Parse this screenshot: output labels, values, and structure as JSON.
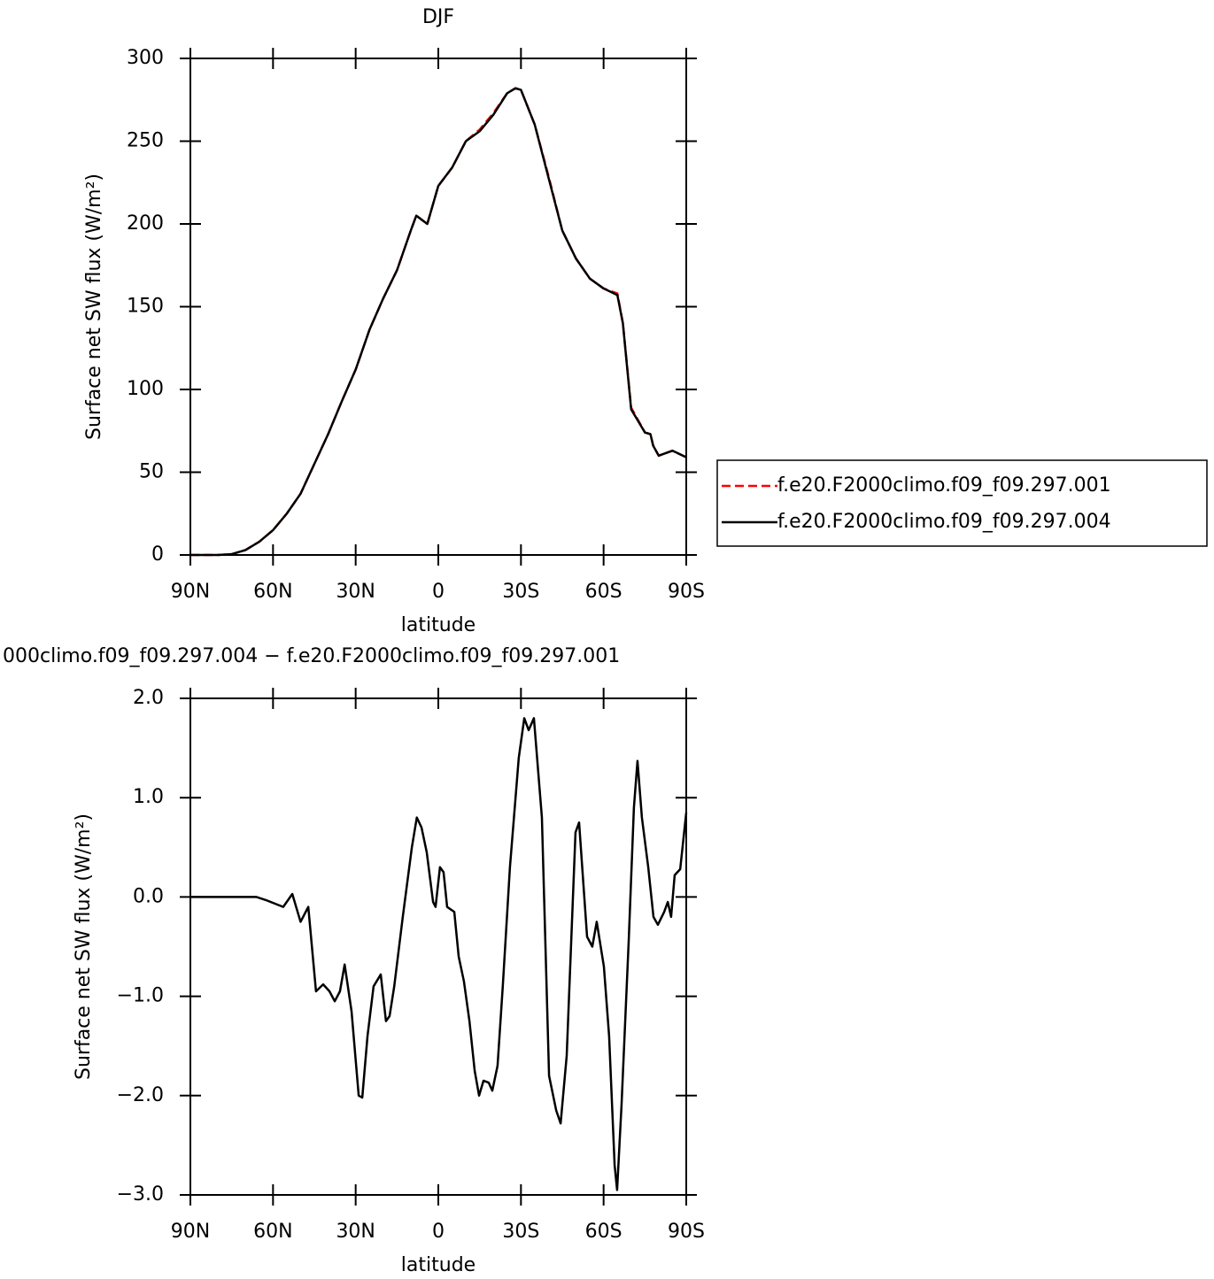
{
  "chart_data": [
    {
      "type": "line",
      "title": "DJF",
      "xlabel": "latitude",
      "ylabel": "Surface net SW flux (W/m²)",
      "x": [
        90,
        85,
        80,
        75,
        70,
        65,
        60,
        55,
        50,
        45,
        40,
        35,
        30,
        25,
        20,
        15,
        10,
        8,
        4,
        0,
        -5,
        -10,
        -15,
        -20,
        -25,
        -28,
        -30,
        -35,
        -40,
        -45,
        -50,
        -55,
        -60,
        -65,
        -67,
        -70,
        -75,
        -77,
        -78,
        -80,
        -85,
        -90
      ],
      "series": [
        {
          "name": "f.e20.F2000climo.f09_f09.297.001",
          "color": "#ff0000",
          "dashed": true,
          "values": [
            0,
            0,
            0,
            0.5,
            3,
            8,
            15,
            25,
            37,
            55,
            73,
            93,
            112,
            136,
            155,
            172,
            196,
            205,
            200,
            223,
            234,
            250,
            257,
            267,
            279,
            282,
            281,
            260,
            229,
            196,
            179,
            167,
            161,
            158,
            140,
            89,
            74,
            73,
            66,
            60,
            63,
            59
          ]
        },
        {
          "name": "f.e20.F2000climo.f09_f09.297.004",
          "color": "#000000",
          "dashed": false,
          "values": [
            0,
            0,
            0,
            0.5,
            3,
            8,
            15,
            25,
            37,
            55,
            73,
            93,
            112,
            136,
            155,
            172,
            196,
            205,
            200,
            223,
            234,
            250,
            256,
            266,
            279,
            282,
            281,
            260,
            228,
            196,
            179,
            167,
            161,
            157,
            140,
            88,
            74,
            73,
            66,
            60,
            63,
            59
          ]
        }
      ],
      "xlim": [
        90,
        -90
      ],
      "xticks": [
        {
          "value": 90,
          "label": "90N"
        },
        {
          "value": 60,
          "label": "60N"
        },
        {
          "value": 30,
          "label": "30N"
        },
        0,
        {
          "value": -30,
          "label": "30S"
        },
        {
          "value": -60,
          "label": "60S"
        },
        {
          "value": -90,
          "label": "90S"
        }
      ],
      "ylim": [
        0,
        300
      ],
      "yticks": [
        0,
        50,
        100,
        150,
        200,
        250,
        300
      ],
      "legend": "outside-right"
    },
    {
      "type": "line",
      "title": "000climo.f09_f09.297.004 − f.e20.F2000climo.f09_f09.297.001",
      "xlabel": "latitude",
      "ylabel": "Surface net SW flux (W/m²)",
      "x": [
        90,
        66,
        62.7,
        56.3,
        53,
        50,
        47.2,
        44.4,
        41.8,
        39.5,
        37.6,
        35.7,
        34,
        31.5,
        28.9,
        27.6,
        25.7,
        23.5,
        20.9,
        19,
        17.7,
        16,
        12.9,
        9.6,
        7.8,
        6.1,
        4.2,
        1.9,
        1,
        -0.6,
        -1.9,
        -3.2,
        -5.8,
        -7.4,
        -9.3,
        -11.3,
        -13.2,
        -14.8,
        -16.4,
        -18.3,
        -19.6,
        -21.5,
        -23.4,
        -26,
        -29.2,
        -31.2,
        -32.8,
        -34.7,
        -37.6,
        -40.2,
        -42.8,
        -44.4,
        -46.6,
        -49.8,
        -51.1,
        -54,
        -55.9,
        -57.5,
        -60.1,
        -62,
        -64,
        -64.9,
        -66.5,
        -69.1,
        -71,
        -72.3,
        -73.9,
        -76.2,
        -78.1,
        -79.7,
        -82,
        -83.3,
        -84.5,
        -85.8,
        -87.8,
        -90
      ],
      "values": [
        0,
        0,
        -0.03,
        -0.1,
        0.03,
        -0.25,
        -0.1,
        -0.95,
        -0.88,
        -0.95,
        -1.05,
        -0.95,
        -0.68,
        -1.15,
        -2.0,
        -2.02,
        -1.4,
        -0.9,
        -0.78,
        -1.25,
        -1.2,
        -0.9,
        -0.2,
        0.5,
        0.8,
        0.7,
        0.45,
        -0.05,
        -0.1,
        0.3,
        0.25,
        -0.1,
        -0.15,
        -0.6,
        -0.85,
        -1.25,
        -1.75,
        -2.0,
        -1.85,
        -1.87,
        -1.95,
        -1.7,
        -0.9,
        0.3,
        1.4,
        1.8,
        1.68,
        1.8,
        0.8,
        -1.8,
        -2.15,
        -2.28,
        -1.6,
        0.65,
        0.75,
        -0.4,
        -0.5,
        -0.25,
        -0.7,
        -1.4,
        -2.7,
        -2.95,
        -2.1,
        -0.45,
        0.9,
        1.37,
        0.8,
        0.3,
        -0.2,
        -0.28,
        -0.15,
        -0.05,
        -0.2,
        0.22,
        0.28,
        0.85
      ],
      "color": "#000000",
      "xlim": [
        90,
        -90
      ],
      "xticks": [
        {
          "value": 90,
          "label": "90N"
        },
        {
          "value": 60,
          "label": "60N"
        },
        {
          "value": 30,
          "label": "30N"
        },
        0,
        {
          "value": -30,
          "label": "30S"
        },
        {
          "value": -60,
          "label": "60S"
        },
        {
          "value": -90,
          "label": "90S"
        }
      ],
      "ylim": [
        -3,
        2
      ],
      "yticks": [
        {
          "value": -3,
          "label": "−3.0"
        },
        {
          "value": -2,
          "label": "−2.0"
        },
        {
          "value": -1,
          "label": "−1.0"
        },
        {
          "value": 0,
          "label": "0.0"
        },
        {
          "value": 1,
          "label": "1.0"
        },
        {
          "value": 2,
          "label": "2.0"
        }
      ]
    }
  ]
}
